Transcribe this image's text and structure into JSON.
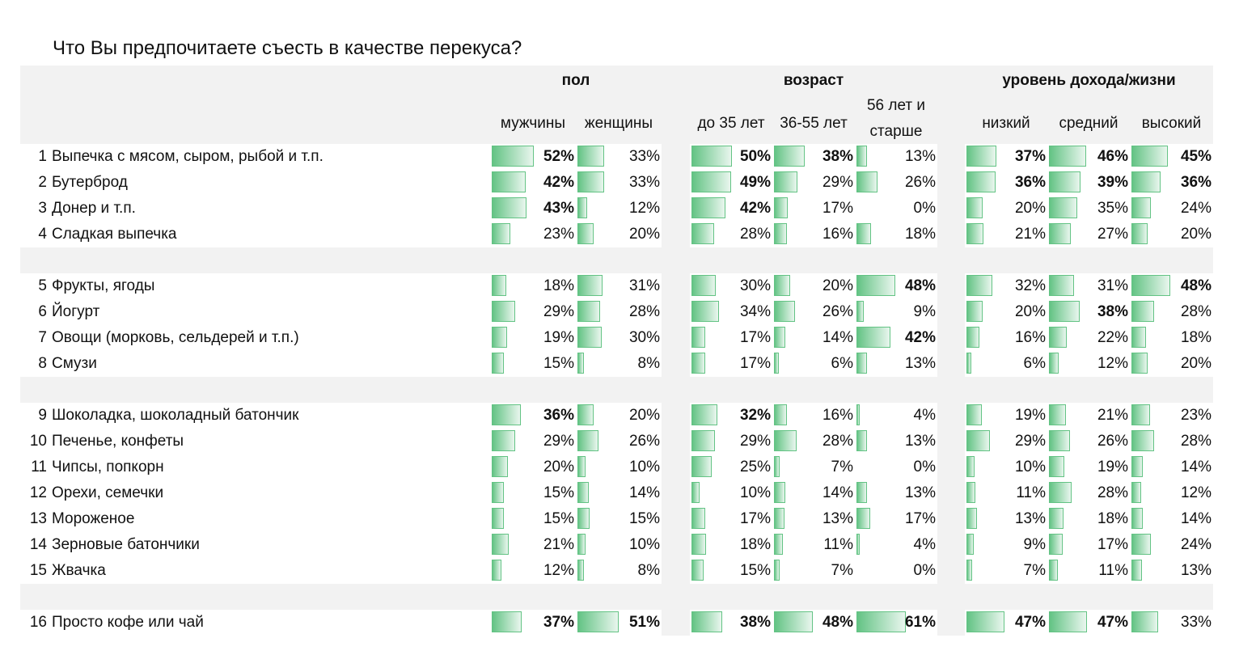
{
  "title": "Что Вы предпочитаете съесть в качестве перекуса?",
  "groups": [
    {
      "label": "пол",
      "columns": [
        "мужчины",
        "женщины"
      ]
    },
    {
      "label": "возраст",
      "columns": [
        "до 35 лет",
        "36-55 лет",
        "56 лет и старше"
      ]
    },
    {
      "label": "уровень дохода/жизни",
      "columns": [
        "низкий",
        "средний",
        "высокий"
      ]
    }
  ],
  "colors": {
    "bar": "#63c384",
    "background": "#f2f2f2"
  },
  "chart_data": {
    "type": "table",
    "title": "Что Вы предпочитаете съесть в качестве перекуса?",
    "columns": [
      "мужчины",
      "женщины",
      "до 35 лет",
      "36-55 лет",
      "56 лет и старше",
      "низкий",
      "средний",
      "высокий"
    ],
    "unit": "%",
    "row_groups": [
      [
        0,
        1,
        2,
        3
      ],
      [
        4,
        5,
        6,
        7
      ],
      [
        8,
        9,
        10,
        11,
        12,
        13,
        14
      ],
      [
        15
      ]
    ],
    "rows": [
      {
        "num": "1",
        "label": "Выпечка с мясом, сыром, рыбой и т.п.",
        "values": [
          52,
          33,
          50,
          38,
          13,
          37,
          46,
          45
        ],
        "bold": [
          1,
          0,
          1,
          1,
          0,
          1,
          1,
          1
        ]
      },
      {
        "num": "2",
        "label": "Бутерброд",
        "values": [
          42,
          33,
          49,
          29,
          26,
          36,
          39,
          36
        ],
        "bold": [
          1,
          0,
          1,
          0,
          0,
          1,
          1,
          1
        ]
      },
      {
        "num": "3",
        "label": "Донер и т.п.",
        "values": [
          43,
          12,
          42,
          17,
          0,
          20,
          35,
          24
        ],
        "bold": [
          1,
          0,
          1,
          0,
          0,
          0,
          0,
          0
        ]
      },
      {
        "num": "4",
        "label": "Сладкая выпечка",
        "values": [
          23,
          20,
          28,
          16,
          18,
          21,
          27,
          20
        ],
        "bold": [
          0,
          0,
          0,
          0,
          0,
          0,
          0,
          0
        ]
      },
      {
        "num": "5",
        "label": "Фрукты, ягоды",
        "values": [
          18,
          31,
          30,
          20,
          48,
          32,
          31,
          48
        ],
        "bold": [
          0,
          0,
          0,
          0,
          1,
          0,
          0,
          1
        ]
      },
      {
        "num": "6",
        "label": "Йогурт",
        "values": [
          29,
          28,
          34,
          26,
          9,
          20,
          38,
          28
        ],
        "bold": [
          0,
          0,
          0,
          0,
          0,
          0,
          1,
          0
        ]
      },
      {
        "num": "7",
        "label": "Овощи (морковь, сельдерей и т.п.)",
        "values": [
          19,
          30,
          17,
          14,
          42,
          16,
          22,
          18
        ],
        "bold": [
          0,
          0,
          0,
          0,
          1,
          0,
          0,
          0
        ]
      },
      {
        "num": "8",
        "label": "Смузи",
        "values": [
          15,
          8,
          17,
          6,
          13,
          6,
          12,
          20
        ],
        "bold": [
          0,
          0,
          0,
          0,
          0,
          0,
          0,
          0
        ]
      },
      {
        "num": "9",
        "label": "Шоколадка, шоколадный батончик",
        "values": [
          36,
          20,
          32,
          16,
          4,
          19,
          21,
          23
        ],
        "bold": [
          1,
          0,
          1,
          0,
          0,
          0,
          0,
          0
        ]
      },
      {
        "num": "10",
        "label": "Печенье, конфеты",
        "values": [
          29,
          26,
          29,
          28,
          13,
          29,
          26,
          28
        ],
        "bold": [
          0,
          0,
          0,
          0,
          0,
          0,
          0,
          0
        ]
      },
      {
        "num": "11",
        "label": "Чипсы, попкорн",
        "values": [
          20,
          10,
          25,
          7,
          0,
          10,
          19,
          14
        ],
        "bold": [
          0,
          0,
          0,
          0,
          0,
          0,
          0,
          0
        ]
      },
      {
        "num": "12",
        "label": "Орехи, семечки",
        "values": [
          15,
          14,
          10,
          14,
          13,
          11,
          28,
          12
        ],
        "bold": [
          0,
          0,
          0,
          0,
          0,
          0,
          0,
          0
        ]
      },
      {
        "num": "13",
        "label": "Мороженое",
        "values": [
          15,
          15,
          17,
          13,
          17,
          13,
          18,
          14
        ],
        "bold": [
          0,
          0,
          0,
          0,
          0,
          0,
          0,
          0
        ]
      },
      {
        "num": "14",
        "label": "Зерновые батончики",
        "values": [
          21,
          10,
          18,
          11,
          4,
          9,
          17,
          24
        ],
        "bold": [
          0,
          0,
          0,
          0,
          0,
          0,
          0,
          0
        ]
      },
      {
        "num": "15",
        "label": "Жвачка",
        "values": [
          12,
          8,
          15,
          7,
          0,
          7,
          11,
          13
        ],
        "bold": [
          0,
          0,
          0,
          0,
          0,
          0,
          0,
          0
        ]
      },
      {
        "num": "16",
        "label": "Просто кофе или чай",
        "values": [
          37,
          51,
          38,
          48,
          61,
          47,
          47,
          33
        ],
        "bold": [
          1,
          1,
          1,
          1,
          1,
          1,
          1,
          0
        ]
      }
    ]
  }
}
